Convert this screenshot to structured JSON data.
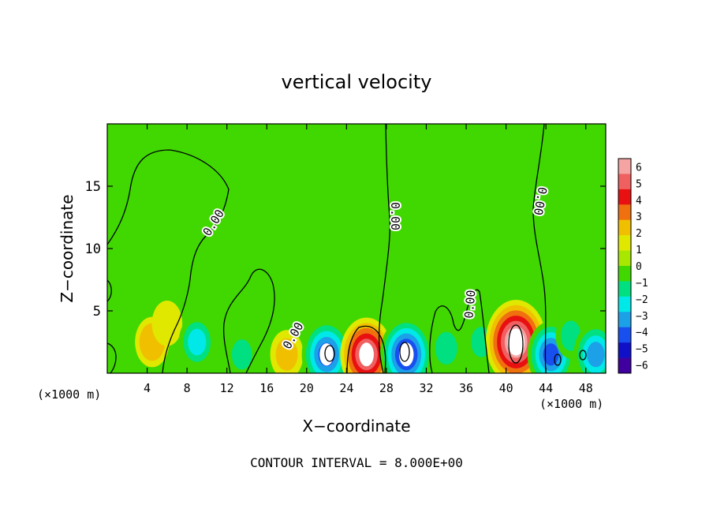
{
  "chart_data": {
    "type": "heatmap",
    "title": "vertical velocity",
    "xlabel": "X−coordinate",
    "ylabel": "Z−coordinate",
    "x_unit_left": "(×1000 m)",
    "x_unit_right": "(×1000 m)",
    "xlim": [
      0,
      50
    ],
    "ylim": [
      0,
      20
    ],
    "x_ticks": [
      "4",
      "8",
      "12",
      "16",
      "20",
      "24",
      "28",
      "32",
      "36",
      "40",
      "44",
      "48"
    ],
    "y_ticks": [
      "5",
      "10",
      "15"
    ],
    "colorbar": {
      "labels": [
        "6",
        "5",
        "4",
        "3",
        "2",
        "1",
        "0",
        "−1",
        "−2",
        "−3",
        "−4",
        "−5",
        "−6"
      ],
      "colors": [
        "#f5a3a3",
        "#f06060",
        "#e81010",
        "#f07010",
        "#f0c000",
        "#e0e800",
        "#a8e800",
        "#40d800",
        "#00e080",
        "#00e8e8",
        "#1ca0e8",
        "#1850f0",
        "#1010c8",
        "#4000a0"
      ]
    },
    "contour_labels": [
      "0.00",
      "0.00",
      "0.00",
      "0.00",
      "0.00"
    ],
    "annotation": "CONTOUR INTERVAL = 8.000E+00",
    "features": [
      {
        "x": 4.5,
        "z": 2.5,
        "w": 2.2
      },
      {
        "x": 6.0,
        "z": 4.0,
        "w": 1.5
      },
      {
        "x": 9.0,
        "z": 2.5,
        "w": -2.6
      },
      {
        "x": 13.5,
        "z": 1.5,
        "w": -1.5
      },
      {
        "x": 18.0,
        "z": 1.5,
        "w": 2.0
      },
      {
        "x": 22.0,
        "z": 1.5,
        "w": -5.0
      },
      {
        "x": 26.0,
        "z": 1.5,
        "w": 5.5
      },
      {
        "x": 30.0,
        "z": 1.5,
        "w": -5.5
      },
      {
        "x": 34.0,
        "z": 2.0,
        "w": -2.0
      },
      {
        "x": 37.5,
        "z": 2.5,
        "w": -1.5
      },
      {
        "x": 41.0,
        "z": 2.5,
        "w": 7.0
      },
      {
        "x": 44.5,
        "z": 1.5,
        "w": -4.5
      },
      {
        "x": 46.5,
        "z": 3.0,
        "w": -1.5
      },
      {
        "x": 49.0,
        "z": 1.5,
        "w": -4.0
      }
    ]
  }
}
